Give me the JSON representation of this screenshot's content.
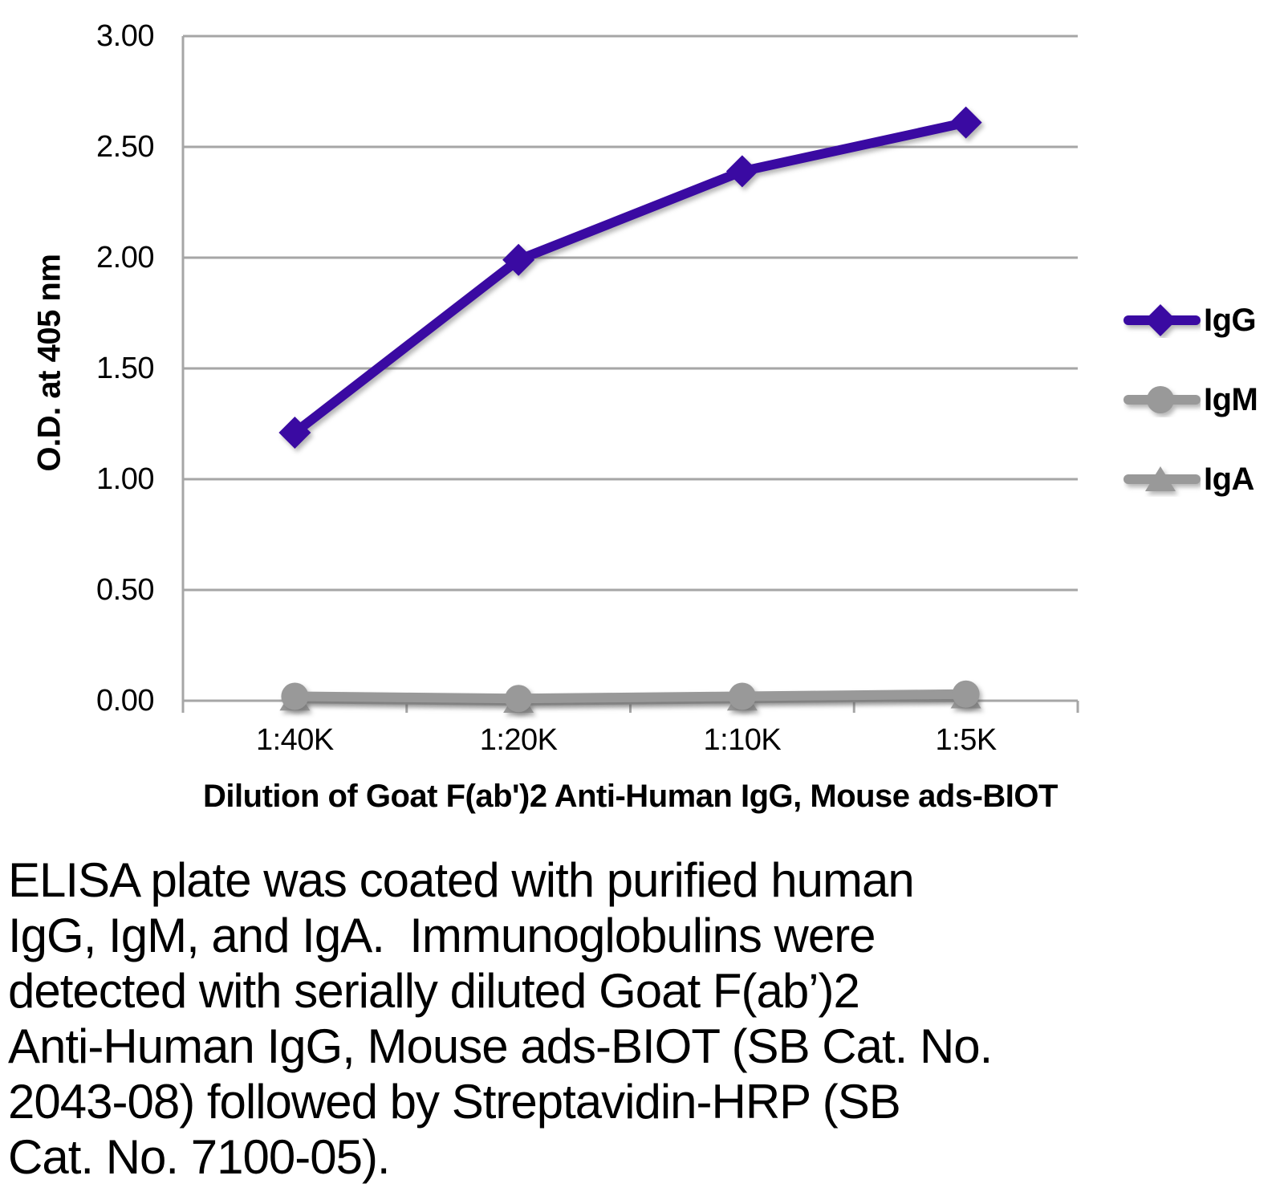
{
  "chart_data": {
    "type": "line",
    "title": "",
    "xlabel": "Dilution of Goat F(ab')2 Anti-Human IgG, Mouse ads-BIOT",
    "ylabel": "O.D. at 405 nm",
    "categories": [
      "1:40K",
      "1:20K",
      "1:10K",
      "1:5K"
    ],
    "series": [
      {
        "name": "IgG",
        "marker": "diamond",
        "color": "#3a0aa2",
        "values": [
          1.21,
          1.99,
          2.39,
          2.61
        ]
      },
      {
        "name": "IgM",
        "marker": "circle",
        "color": "#999999",
        "values": [
          0.02,
          0.01,
          0.02,
          0.03
        ]
      },
      {
        "name": "IgA",
        "marker": "triangle",
        "color": "#999999",
        "values": [
          0.01,
          0.0,
          0.01,
          0.02
        ]
      }
    ],
    "ylim": [
      0,
      3
    ],
    "yticks": [
      0,
      0.5,
      1,
      1.5,
      2,
      2.5,
      3
    ],
    "ytick_labels": [
      "0.00",
      "0.50",
      "1.00",
      "1.50",
      "2.00",
      "2.50",
      "3.00"
    ],
    "grid": true,
    "legend_position": "right",
    "colors": {
      "gridline": "#a6a6a6",
      "axis": "#a0a0a0",
      "text": "#000000"
    }
  },
  "caption": {
    "lines": [
      "ELISA plate was coated with purified human",
      "IgG, IgM, and IgA.  Immunoglobulins were",
      "detected with serially diluted Goat F(ab’)2",
      "Anti-Human IgG, Mouse ads-BIOT (SB Cat. No.",
      "2043-08) followed by Streptavidin-HRP (SB",
      "Cat. No. 7100-05)."
    ]
  }
}
